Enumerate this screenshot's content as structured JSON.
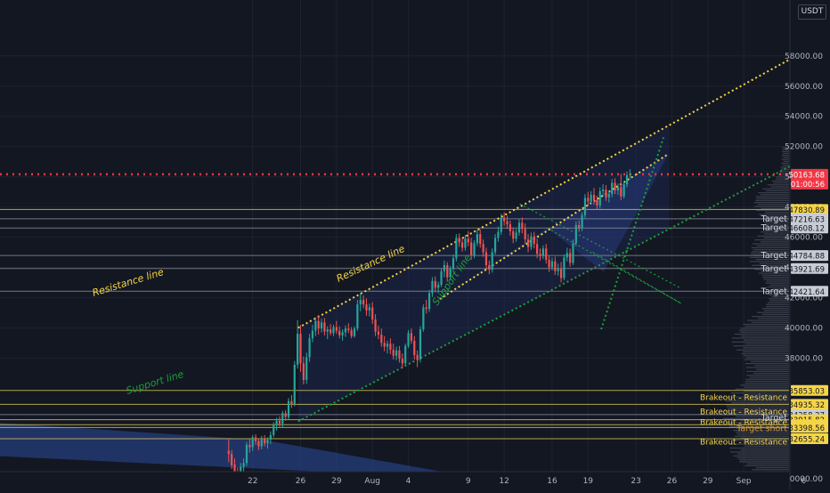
{
  "currency_label": "USDT",
  "colors": {
    "background": "#131722",
    "up": "#26a69a",
    "down": "#ef5350",
    "resistance_line": "#f5d547",
    "support_line": "#1f9e3a",
    "current_price_line": "#f23645",
    "level_line": "#d8c85a",
    "target_line": "#8a8f9b",
    "target_label_bg": "#c8ccd4",
    "breakout_label_bg": "#f5d547",
    "channel_fill": "#1c2a55"
  },
  "chart_data": {
    "type": "candlestick",
    "title": "",
    "xlabel": "",
    "ylabel": "",
    "y_axis_ticks": [
      30000,
      38000,
      40000,
      42000,
      44000,
      46000,
      48000,
      50000,
      52000,
      54000,
      56000,
      58000
    ],
    "x_axis_labels": [
      "22",
      "26",
      "29",
      "Aug",
      "4",
      "9",
      "12",
      "16",
      "19",
      "23",
      "26",
      "29",
      "Sep",
      "6"
    ],
    "ylim": [
      29300,
      61700
    ],
    "grid": true,
    "current_price": {
      "price": 50163.68,
      "countdown": "01:00:56",
      "label": "50163.68"
    },
    "price_labels": [
      {
        "price": 47830.89,
        "label": "47830.89",
        "kind": "level"
      },
      {
        "price": 47216.63,
        "label": "47216.63",
        "kind": "target"
      },
      {
        "price": 46608.12,
        "label": "46608.12",
        "kind": "target"
      },
      {
        "price": 44784.88,
        "label": "44784.88",
        "kind": "target"
      },
      {
        "price": 43921.69,
        "label": "43921.69",
        "kind": "target"
      },
      {
        "price": 42421.64,
        "label": "42421.64",
        "kind": "target"
      },
      {
        "price": 35853.03,
        "label": "35853.03",
        "kind": "breakout"
      },
      {
        "price": 34935.32,
        "label": "34935.32",
        "kind": "breakout"
      },
      {
        "price": 34258.27,
        "label": "34258.27",
        "kind": "target"
      },
      {
        "price": 33915.82,
        "label": "33915.82",
        "kind": "breakout"
      },
      {
        "price": 33585.47,
        "label": "33585.47",
        "kind": "breakout"
      },
      {
        "price": 33398.56,
        "label": "33398.56",
        "kind": "breakout"
      },
      {
        "price": 32655.24,
        "label": "32655.24",
        "kind": "breakout"
      }
    ],
    "level_annotations": [
      {
        "text": "Target",
        "price": 47216.63
      },
      {
        "text": "Target",
        "price": 46608.12
      },
      {
        "text": "Target",
        "price": 44784.88
      },
      {
        "text": "Target",
        "price": 43921.69
      },
      {
        "text": "Target",
        "price": 42421.64
      },
      {
        "text": "Brakeout - Resistance",
        "price": 35400
      },
      {
        "text": "Brakeout - Resistance",
        "price": 34450
      },
      {
        "text": "Target",
        "price": 34050
      },
      {
        "text": "Brakeout - Resistance",
        "price": 33750
      },
      {
        "text": "Target short",
        "price": 33330
      },
      {
        "text": "Brakeout - Resistance",
        "price": 32450
      }
    ],
    "drawn_labels": [
      "Resistance line",
      "Resistance line",
      "Support line",
      "Support line"
    ],
    "trendlines": [
      {
        "name": "Resistance line",
        "from": {
          "day": 25.8,
          "price": 40000
        },
        "to": {
          "day": 72,
          "price": 60000
        }
      },
      {
        "name": "Support line",
        "from": {
          "day": 25.8,
          "price": 33800
        },
        "to": {
          "day": 72,
          "price": 52800
        }
      },
      {
        "name": "Resistance line",
        "from": {
          "day": 37.6,
          "price": 41900
        },
        "to": {
          "day": 56.7,
          "price": 51500
        }
      },
      {
        "name": "Support line",
        "from": {
          "day": 51.1,
          "price": 39900
        },
        "to": {
          "day": 56.3,
          "price": 52600
        }
      }
    ],
    "candles": [
      [
        20,
        31850,
        32600,
        31100,
        31650
      ],
      [
        20.25,
        31650,
        31900,
        30650,
        30900
      ],
      [
        20.5,
        30950,
        31350,
        30100,
        30350
      ],
      [
        20.75,
        30350,
        30750,
        29600,
        29900
      ],
      [
        21,
        29850,
        31050,
        29650,
        30800
      ],
      [
        21.25,
        30800,
        31350,
        30300,
        31050
      ],
      [
        21.5,
        31050,
        32450,
        30850,
        32250
      ],
      [
        21.75,
        32250,
        32650,
        31750,
        32100
      ],
      [
        22,
        32100,
        32900,
        31850,
        32750
      ],
      [
        22.25,
        32750,
        32950,
        32250,
        32500
      ],
      [
        22.5,
        32500,
        32650,
        31900,
        32150
      ],
      [
        22.75,
        32150,
        32850,
        31950,
        32650
      ],
      [
        23,
        32650,
        32900,
        32150,
        32350
      ],
      [
        23.25,
        32350,
        32750,
        32000,
        32600
      ],
      [
        23.5,
        32600,
        33150,
        32300,
        32900
      ],
      [
        23.75,
        32900,
        33750,
        32750,
        33550
      ],
      [
        24,
        33550,
        34050,
        33200,
        33850
      ],
      [
        24.25,
        33850,
        34150,
        33450,
        33650
      ],
      [
        24.5,
        33650,
        34500,
        33400,
        34350
      ],
      [
        24.75,
        34350,
        34550,
        33850,
        34100
      ],
      [
        25,
        34100,
        35350,
        33950,
        35150
      ],
      [
        25.25,
        35150,
        35550,
        34700,
        34950
      ],
      [
        25.5,
        34950,
        37800,
        34800,
        37550
      ],
      [
        25.75,
        37550,
        40500,
        37300,
        39600
      ],
      [
        26,
        39600,
        40200,
        37100,
        37650
      ],
      [
        26.25,
        37650,
        38100,
        36250,
        36550
      ],
      [
        26.5,
        36550,
        38350,
        36300,
        38050
      ],
      [
        26.75,
        38050,
        39600,
        37750,
        39300
      ],
      [
        27,
        39300,
        40200,
        39050,
        39800
      ],
      [
        27.25,
        39800,
        40700,
        39450,
        40450
      ],
      [
        27.5,
        40450,
        40850,
        39550,
        39950
      ],
      [
        27.75,
        39950,
        40600,
        39700,
        40350
      ],
      [
        28,
        40350,
        40650,
        39500,
        39750
      ],
      [
        28.25,
        39750,
        40100,
        39250,
        39900
      ],
      [
        28.5,
        39900,
        40250,
        39500,
        39650
      ],
      [
        28.75,
        39650,
        40200,
        39450,
        40050
      ],
      [
        29,
        40050,
        40450,
        39600,
        39800
      ],
      [
        29.25,
        39800,
        40100,
        39300,
        39500
      ],
      [
        29.5,
        39500,
        39900,
        39150,
        39700
      ],
      [
        29.75,
        39700,
        40150,
        39400,
        39950
      ],
      [
        30,
        39950,
        40300,
        39650,
        39850
      ],
      [
        30.25,
        39850,
        40050,
        39300,
        39450
      ],
      [
        30.5,
        39450,
        40100,
        39350,
        39950
      ],
      [
        30.75,
        39950,
        41850,
        39800,
        41550
      ],
      [
        31,
        41550,
        42300,
        41100,
        41850
      ],
      [
        31.25,
        41850,
        42150,
        41300,
        41550
      ],
      [
        31.5,
        41550,
        41950,
        40800,
        41150
      ],
      [
        31.75,
        41150,
        41600,
        40750,
        41350
      ],
      [
        32,
        41350,
        41700,
        40250,
        40550
      ],
      [
        32.25,
        40550,
        40900,
        39450,
        39750
      ],
      [
        32.5,
        39750,
        40150,
        39250,
        39550
      ],
      [
        32.75,
        39550,
        39950,
        38750,
        39000
      ],
      [
        33,
        39000,
        39450,
        38450,
        38750
      ],
      [
        33.25,
        38750,
        39150,
        38300,
        38950
      ],
      [
        33.5,
        38950,
        39300,
        38250,
        38550
      ],
      [
        33.75,
        38550,
        38950,
        37900,
        38150
      ],
      [
        34,
        38150,
        38750,
        37850,
        38500
      ],
      [
        34.25,
        38500,
        38800,
        37700,
        37950
      ],
      [
        34.5,
        37950,
        38300,
        37350,
        37650
      ],
      [
        34.75,
        37650,
        38950,
        37550,
        38800
      ],
      [
        35,
        38800,
        39850,
        38650,
        39650
      ],
      [
        35.25,
        39650,
        39950,
        38950,
        39150
      ],
      [
        35.5,
        39150,
        39450,
        37900,
        38200
      ],
      [
        35.75,
        38200,
        38500,
        37400,
        37900
      ],
      [
        36,
        37900,
        40100,
        37700,
        39900
      ],
      [
        36.25,
        39900,
        41550,
        39750,
        41350
      ],
      [
        36.5,
        41350,
        41850,
        40950,
        41250
      ],
      [
        36.75,
        41250,
        42500,
        41050,
        42300
      ],
      [
        37,
        42300,
        43350,
        42050,
        43100
      ],
      [
        37.25,
        43100,
        43400,
        42350,
        42650
      ],
      [
        37.5,
        42650,
        43050,
        42300,
        42850
      ],
      [
        37.75,
        42850,
        43950,
        42700,
        43750
      ],
      [
        38,
        43750,
        44450,
        43350,
        44150
      ],
      [
        38.25,
        44150,
        44350,
        43050,
        43350
      ],
      [
        38.5,
        43350,
        44100,
        43150,
        43900
      ],
      [
        38.75,
        43900,
        44850,
        43700,
        44600
      ],
      [
        39,
        44600,
        46200,
        44400,
        45950
      ],
      [
        39.25,
        45950,
        46250,
        45350,
        45650
      ],
      [
        39.5,
        45650,
        45950,
        45050,
        45300
      ],
      [
        39.75,
        45300,
        46150,
        45100,
        45900
      ],
      [
        40,
        45900,
        46400,
        45400,
        45650
      ],
      [
        40.25,
        45650,
        45950,
        44500,
        44800
      ],
      [
        40.5,
        44800,
        45800,
        44600,
        45600
      ],
      [
        40.75,
        45600,
        46500,
        45400,
        46200
      ],
      [
        41,
        46200,
        46500,
        45300,
        45550
      ],
      [
        41.25,
        45550,
        45850,
        44700,
        45000
      ],
      [
        41.5,
        45000,
        45300,
        43850,
        44150
      ],
      [
        41.75,
        44150,
        44450,
        43550,
        43850
      ],
      [
        42,
        43850,
        45250,
        43650,
        45000
      ],
      [
        42.25,
        45000,
        46200,
        44850,
        45950
      ],
      [
        42.5,
        45950,
        46700,
        45700,
        46350
      ],
      [
        42.75,
        46350,
        47550,
        46150,
        47300
      ],
      [
        43,
        47300,
        47650,
        46750,
        47050
      ],
      [
        43.25,
        47050,
        47400,
        46550,
        46850
      ],
      [
        43.5,
        46850,
        47100,
        46100,
        46400
      ],
      [
        43.75,
        46400,
        46650,
        45600,
        45900
      ],
      [
        44,
        45900,
        46550,
        45700,
        46300
      ],
      [
        44.25,
        46300,
        47200,
        46100,
        46950
      ],
      [
        44.5,
        46950,
        47300,
        46250,
        46550
      ],
      [
        44.75,
        46550,
        46900,
        45600,
        45850
      ],
      [
        45,
        45850,
        46200,
        45000,
        45350
      ],
      [
        45.25,
        45350,
        46300,
        45150,
        46050
      ],
      [
        45.5,
        46050,
        46350,
        45250,
        45550
      ],
      [
        45.75,
        45550,
        45900,
        44600,
        44900
      ],
      [
        46,
        44900,
        45250,
        44450,
        44750
      ],
      [
        46.25,
        44750,
        45450,
        44550,
        45250
      ],
      [
        46.5,
        45250,
        45550,
        44250,
        44500
      ],
      [
        46.75,
        44500,
        44800,
        43700,
        44000
      ],
      [
        47,
        44000,
        44650,
        43800,
        44400
      ],
      [
        47.25,
        44400,
        44700,
        43500,
        43750
      ],
      [
        47.5,
        43750,
        44250,
        43450,
        43900
      ],
      [
        47.75,
        43900,
        44350,
        43000,
        43300
      ],
      [
        48,
        43300,
        44850,
        43150,
        44650
      ],
      [
        48.25,
        44650,
        45300,
        44400,
        44950
      ],
      [
        48.5,
        44950,
        45250,
        44050,
        44300
      ],
      [
        48.75,
        44300,
        45850,
        44150,
        45600
      ],
      [
        49,
        45600,
        47050,
        45400,
        46800
      ],
      [
        49.25,
        46800,
        47100,
        46350,
        46600
      ],
      [
        49.5,
        46600,
        47650,
        46400,
        47450
      ],
      [
        49.75,
        47450,
        48850,
        47250,
        48600
      ],
      [
        50,
        48600,
        49000,
        48050,
        48350
      ],
      [
        50.25,
        48350,
        49050,
        48150,
        48800
      ],
      [
        50.5,
        48800,
        49250,
        48150,
        48450
      ],
      [
        50.75,
        48450,
        48750,
        47850,
        48100
      ],
      [
        51,
        48100,
        49300,
        47900,
        49050
      ],
      [
        51.25,
        49050,
        49500,
        48700,
        49150
      ],
      [
        51.5,
        49150,
        49450,
        48400,
        48650
      ],
      [
        51.75,
        48650,
        49100,
        48300,
        48850
      ],
      [
        52,
        48850,
        49850,
        48650,
        49600
      ],
      [
        52.25,
        49600,
        49900,
        48850,
        49100
      ],
      [
        52.5,
        49100,
        49550,
        48800,
        49300
      ],
      [
        52.75,
        49300,
        50200,
        48450,
        48700
      ],
      [
        53,
        48700,
        49700,
        48550,
        49500
      ],
      [
        53.25,
        49500,
        50350,
        49300,
        50100
      ],
      [
        53.5,
        50100,
        50500,
        49850,
        50160
      ]
    ]
  }
}
